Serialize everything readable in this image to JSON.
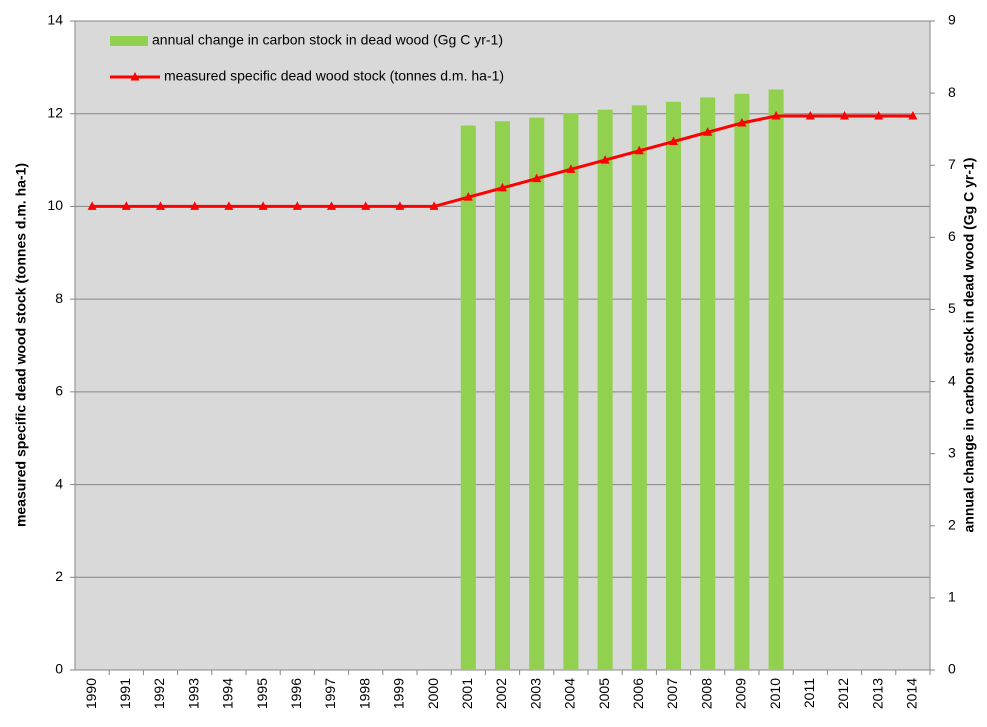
{
  "chart_data": {
    "type": "combo",
    "categories": [
      "1990",
      "1991",
      "1992",
      "1993",
      "1994",
      "1995",
      "1996",
      "1997",
      "1998",
      "1999",
      "2000",
      "2001",
      "2002",
      "2003",
      "2004",
      "2005",
      "2006",
      "2007",
      "2008",
      "2009",
      "2010",
      "2011",
      "2012",
      "2013",
      "2014"
    ],
    "y_label": "measured specific dead wood stock (tonnes d.m. ha-1)",
    "y2_label": "annual change in carbon stock in dead wood (Gg C yr-1)",
    "ylim": [
      0,
      14
    ],
    "yticks": [
      0,
      2,
      4,
      6,
      8,
      10,
      12,
      14
    ],
    "y2lim": [
      0,
      9
    ],
    "y2ticks": [
      0,
      1,
      2,
      3,
      4,
      5,
      6,
      7,
      8,
      9
    ],
    "grid": true,
    "legend": "top-left",
    "background": "#d9d9d9",
    "series": [
      {
        "name": "annual change in carbon stock in dead wood (Gg C yr-1)",
        "type": "bar",
        "axis": "y2",
        "color": "#92d050",
        "values": [
          null,
          null,
          null,
          null,
          null,
          null,
          null,
          null,
          null,
          null,
          null,
          7.55,
          7.61,
          7.66,
          7.72,
          7.77,
          7.83,
          7.88,
          7.94,
          7.99,
          8.05,
          null,
          null,
          null,
          null
        ]
      },
      {
        "name": "measured specific dead wood stock (tonnes d.m. ha-1)",
        "type": "line",
        "color": "#ff0000",
        "values": [
          10,
          10,
          10,
          10,
          10,
          10,
          10,
          10,
          10,
          10,
          10,
          10.2,
          10.4,
          10.6,
          10.8,
          11.0,
          11.2,
          11.4,
          11.6,
          11.8,
          11.95,
          11.95,
          11.95,
          11.95,
          11.95
        ]
      }
    ]
  }
}
